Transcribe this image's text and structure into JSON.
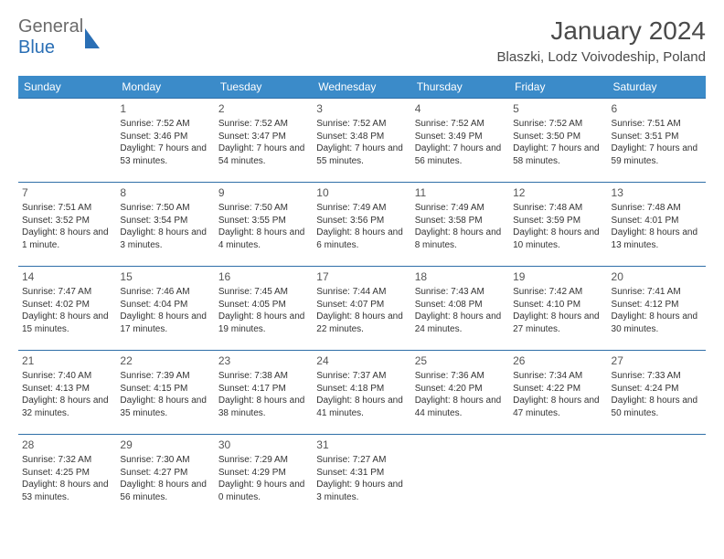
{
  "brand": {
    "part1": "General",
    "part2": "Blue"
  },
  "title": "January 2024",
  "location": "Blaszki, Lodz Voivodeship, Poland",
  "colors": {
    "header_bg": "#3b8bc9",
    "header_text": "#ffffff",
    "row_border": "#2f6fa8",
    "brand_gray": "#6b6b6b",
    "brand_blue": "#2a6fb5"
  },
  "weekdays": [
    "Sunday",
    "Monday",
    "Tuesday",
    "Wednesday",
    "Thursday",
    "Friday",
    "Saturday"
  ],
  "weeks": [
    [
      null,
      {
        "n": "1",
        "sr": "Sunrise: 7:52 AM",
        "ss": "Sunset: 3:46 PM",
        "dl": "Daylight: 7 hours and 53 minutes."
      },
      {
        "n": "2",
        "sr": "Sunrise: 7:52 AM",
        "ss": "Sunset: 3:47 PM",
        "dl": "Daylight: 7 hours and 54 minutes."
      },
      {
        "n": "3",
        "sr": "Sunrise: 7:52 AM",
        "ss": "Sunset: 3:48 PM",
        "dl": "Daylight: 7 hours and 55 minutes."
      },
      {
        "n": "4",
        "sr": "Sunrise: 7:52 AM",
        "ss": "Sunset: 3:49 PM",
        "dl": "Daylight: 7 hours and 56 minutes."
      },
      {
        "n": "5",
        "sr": "Sunrise: 7:52 AM",
        "ss": "Sunset: 3:50 PM",
        "dl": "Daylight: 7 hours and 58 minutes."
      },
      {
        "n": "6",
        "sr": "Sunrise: 7:51 AM",
        "ss": "Sunset: 3:51 PM",
        "dl": "Daylight: 7 hours and 59 minutes."
      }
    ],
    [
      {
        "n": "7",
        "sr": "Sunrise: 7:51 AM",
        "ss": "Sunset: 3:52 PM",
        "dl": "Daylight: 8 hours and 1 minute."
      },
      {
        "n": "8",
        "sr": "Sunrise: 7:50 AM",
        "ss": "Sunset: 3:54 PM",
        "dl": "Daylight: 8 hours and 3 minutes."
      },
      {
        "n": "9",
        "sr": "Sunrise: 7:50 AM",
        "ss": "Sunset: 3:55 PM",
        "dl": "Daylight: 8 hours and 4 minutes."
      },
      {
        "n": "10",
        "sr": "Sunrise: 7:49 AM",
        "ss": "Sunset: 3:56 PM",
        "dl": "Daylight: 8 hours and 6 minutes."
      },
      {
        "n": "11",
        "sr": "Sunrise: 7:49 AM",
        "ss": "Sunset: 3:58 PM",
        "dl": "Daylight: 8 hours and 8 minutes."
      },
      {
        "n": "12",
        "sr": "Sunrise: 7:48 AM",
        "ss": "Sunset: 3:59 PM",
        "dl": "Daylight: 8 hours and 10 minutes."
      },
      {
        "n": "13",
        "sr": "Sunrise: 7:48 AM",
        "ss": "Sunset: 4:01 PM",
        "dl": "Daylight: 8 hours and 13 minutes."
      }
    ],
    [
      {
        "n": "14",
        "sr": "Sunrise: 7:47 AM",
        "ss": "Sunset: 4:02 PM",
        "dl": "Daylight: 8 hours and 15 minutes."
      },
      {
        "n": "15",
        "sr": "Sunrise: 7:46 AM",
        "ss": "Sunset: 4:04 PM",
        "dl": "Daylight: 8 hours and 17 minutes."
      },
      {
        "n": "16",
        "sr": "Sunrise: 7:45 AM",
        "ss": "Sunset: 4:05 PM",
        "dl": "Daylight: 8 hours and 19 minutes."
      },
      {
        "n": "17",
        "sr": "Sunrise: 7:44 AM",
        "ss": "Sunset: 4:07 PM",
        "dl": "Daylight: 8 hours and 22 minutes."
      },
      {
        "n": "18",
        "sr": "Sunrise: 7:43 AM",
        "ss": "Sunset: 4:08 PM",
        "dl": "Daylight: 8 hours and 24 minutes."
      },
      {
        "n": "19",
        "sr": "Sunrise: 7:42 AM",
        "ss": "Sunset: 4:10 PM",
        "dl": "Daylight: 8 hours and 27 minutes."
      },
      {
        "n": "20",
        "sr": "Sunrise: 7:41 AM",
        "ss": "Sunset: 4:12 PM",
        "dl": "Daylight: 8 hours and 30 minutes."
      }
    ],
    [
      {
        "n": "21",
        "sr": "Sunrise: 7:40 AM",
        "ss": "Sunset: 4:13 PM",
        "dl": "Daylight: 8 hours and 32 minutes."
      },
      {
        "n": "22",
        "sr": "Sunrise: 7:39 AM",
        "ss": "Sunset: 4:15 PM",
        "dl": "Daylight: 8 hours and 35 minutes."
      },
      {
        "n": "23",
        "sr": "Sunrise: 7:38 AM",
        "ss": "Sunset: 4:17 PM",
        "dl": "Daylight: 8 hours and 38 minutes."
      },
      {
        "n": "24",
        "sr": "Sunrise: 7:37 AM",
        "ss": "Sunset: 4:18 PM",
        "dl": "Daylight: 8 hours and 41 minutes."
      },
      {
        "n": "25",
        "sr": "Sunrise: 7:36 AM",
        "ss": "Sunset: 4:20 PM",
        "dl": "Daylight: 8 hours and 44 minutes."
      },
      {
        "n": "26",
        "sr": "Sunrise: 7:34 AM",
        "ss": "Sunset: 4:22 PM",
        "dl": "Daylight: 8 hours and 47 minutes."
      },
      {
        "n": "27",
        "sr": "Sunrise: 7:33 AM",
        "ss": "Sunset: 4:24 PM",
        "dl": "Daylight: 8 hours and 50 minutes."
      }
    ],
    [
      {
        "n": "28",
        "sr": "Sunrise: 7:32 AM",
        "ss": "Sunset: 4:25 PM",
        "dl": "Daylight: 8 hours and 53 minutes."
      },
      {
        "n": "29",
        "sr": "Sunrise: 7:30 AM",
        "ss": "Sunset: 4:27 PM",
        "dl": "Daylight: 8 hours and 56 minutes."
      },
      {
        "n": "30",
        "sr": "Sunrise: 7:29 AM",
        "ss": "Sunset: 4:29 PM",
        "dl": "Daylight: 9 hours and 0 minutes."
      },
      {
        "n": "31",
        "sr": "Sunrise: 7:27 AM",
        "ss": "Sunset: 4:31 PM",
        "dl": "Daylight: 9 hours and 3 minutes."
      },
      null,
      null,
      null
    ]
  ]
}
